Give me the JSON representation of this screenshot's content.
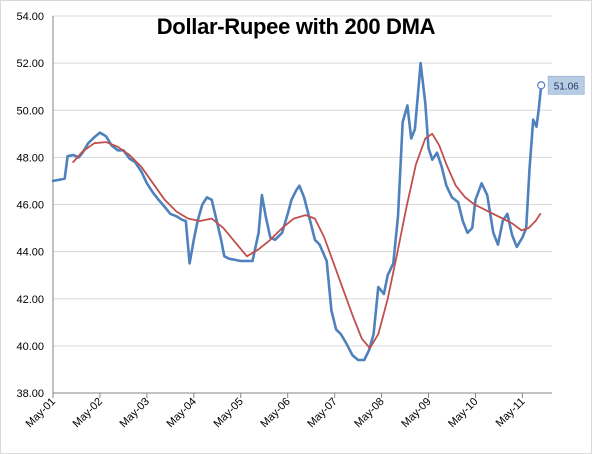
{
  "chart_data": {
    "type": "line",
    "title": "Dollar-Rupee with 200 DMA",
    "xlabel": "",
    "ylabel": "",
    "ylim": [
      38,
      54
    ],
    "y_ticks": [
      "38.00",
      "40.00",
      "42.00",
      "44.00",
      "46.00",
      "48.00",
      "50.00",
      "52.00",
      "54.00"
    ],
    "x_tick_labels": [
      "May-01",
      "May-02",
      "May-03",
      "May-04",
      "May-05",
      "May-06",
      "May-07",
      "May-08",
      "May-09",
      "May-10",
      "May-11"
    ],
    "grid": "horizontal",
    "legend": "none",
    "colors": {
      "price": "#4f81bd",
      "dma": "#c0504d",
      "grid": "#d9d9d9",
      "callout_bg": "#b8cce4"
    },
    "last_value_label": "51.06",
    "series": [
      {
        "color": "#4f81bd",
        "points": [
          [
            2001.37,
            47.0
          ],
          [
            2001.5,
            47.05
          ],
          [
            2001.62,
            47.1
          ],
          [
            2001.68,
            48.05
          ],
          [
            2001.8,
            48.1
          ],
          [
            2001.92,
            48.0
          ],
          [
            2002.0,
            48.2
          ],
          [
            2002.12,
            48.6
          ],
          [
            2002.25,
            48.85
          ],
          [
            2002.37,
            49.05
          ],
          [
            2002.5,
            48.9
          ],
          [
            2002.62,
            48.5
          ],
          [
            2002.75,
            48.3
          ],
          [
            2002.87,
            48.3
          ],
          [
            2003.0,
            47.95
          ],
          [
            2003.12,
            47.8
          ],
          [
            2003.25,
            47.4
          ],
          [
            2003.37,
            46.9
          ],
          [
            2003.5,
            46.5
          ],
          [
            2003.62,
            46.2
          ],
          [
            2003.75,
            45.9
          ],
          [
            2003.87,
            45.6
          ],
          [
            2004.0,
            45.5
          ],
          [
            2004.12,
            45.35
          ],
          [
            2004.2,
            45.3
          ],
          [
            2004.28,
            43.5
          ],
          [
            2004.37,
            44.5
          ],
          [
            2004.45,
            45.3
          ],
          [
            2004.55,
            46.0
          ],
          [
            2004.65,
            46.3
          ],
          [
            2004.75,
            46.2
          ],
          [
            2004.87,
            45.2
          ],
          [
            2004.95,
            44.5
          ],
          [
            2005.02,
            43.8
          ],
          [
            2005.12,
            43.7
          ],
          [
            2005.25,
            43.65
          ],
          [
            2005.37,
            43.6
          ],
          [
            2005.5,
            43.6
          ],
          [
            2005.62,
            43.6
          ],
          [
            2005.75,
            44.8
          ],
          [
            2005.82,
            46.4
          ],
          [
            2005.9,
            45.5
          ],
          [
            2006.0,
            44.6
          ],
          [
            2006.1,
            44.5
          ],
          [
            2006.25,
            44.8
          ],
          [
            2006.37,
            45.6
          ],
          [
            2006.45,
            46.2
          ],
          [
            2006.55,
            46.6
          ],
          [
            2006.62,
            46.8
          ],
          [
            2006.72,
            46.3
          ],
          [
            2006.85,
            45.3
          ],
          [
            2006.95,
            44.5
          ],
          [
            2007.05,
            44.3
          ],
          [
            2007.2,
            43.6
          ],
          [
            2007.3,
            41.5
          ],
          [
            2007.4,
            40.7
          ],
          [
            2007.5,
            40.5
          ],
          [
            2007.62,
            40.1
          ],
          [
            2007.75,
            39.6
          ],
          [
            2007.87,
            39.4
          ],
          [
            2008.0,
            39.4
          ],
          [
            2008.1,
            39.8
          ],
          [
            2008.2,
            40.5
          ],
          [
            2008.3,
            42.5
          ],
          [
            2008.42,
            42.2
          ],
          [
            2008.5,
            43.0
          ],
          [
            2008.62,
            43.5
          ],
          [
            2008.72,
            45.5
          ],
          [
            2008.82,
            49.5
          ],
          [
            2008.92,
            50.2
          ],
          [
            2009.0,
            48.8
          ],
          [
            2009.08,
            49.2
          ],
          [
            2009.15,
            50.8
          ],
          [
            2009.2,
            52.0
          ],
          [
            2009.3,
            50.3
          ],
          [
            2009.37,
            48.4
          ],
          [
            2009.45,
            47.9
          ],
          [
            2009.55,
            48.2
          ],
          [
            2009.65,
            47.6
          ],
          [
            2009.75,
            46.8
          ],
          [
            2009.87,
            46.3
          ],
          [
            2010.0,
            46.1
          ],
          [
            2010.1,
            45.3
          ],
          [
            2010.2,
            44.8
          ],
          [
            2010.3,
            45.0
          ],
          [
            2010.37,
            46.2
          ],
          [
            2010.5,
            46.9
          ],
          [
            2010.62,
            46.4
          ],
          [
            2010.75,
            44.8
          ],
          [
            2010.85,
            44.3
          ],
          [
            2010.95,
            45.3
          ],
          [
            2011.05,
            45.6
          ],
          [
            2011.15,
            44.7
          ],
          [
            2011.25,
            44.2
          ],
          [
            2011.37,
            44.6
          ],
          [
            2011.45,
            45.0
          ],
          [
            2011.52,
            47.5
          ],
          [
            2011.6,
            49.6
          ],
          [
            2011.67,
            49.3
          ],
          [
            2011.72,
            50.1
          ],
          [
            2011.77,
            51.06
          ]
        ]
      },
      {
        "color": "#c0504d",
        "points": [
          [
            2001.8,
            47.8
          ],
          [
            2002.0,
            48.25
          ],
          [
            2002.25,
            48.6
          ],
          [
            2002.5,
            48.65
          ],
          [
            2002.75,
            48.45
          ],
          [
            2003.0,
            48.1
          ],
          [
            2003.25,
            47.6
          ],
          [
            2003.5,
            46.9
          ],
          [
            2003.75,
            46.2
          ],
          [
            2004.0,
            45.7
          ],
          [
            2004.25,
            45.4
          ],
          [
            2004.5,
            45.3
          ],
          [
            2004.75,
            45.4
          ],
          [
            2005.0,
            45.0
          ],
          [
            2005.25,
            44.4
          ],
          [
            2005.5,
            43.8
          ],
          [
            2005.75,
            44.1
          ],
          [
            2006.0,
            44.5
          ],
          [
            2006.25,
            45.0
          ],
          [
            2006.5,
            45.4
          ],
          [
            2006.75,
            45.55
          ],
          [
            2006.95,
            45.4
          ],
          [
            2007.15,
            44.6
          ],
          [
            2007.35,
            43.5
          ],
          [
            2007.55,
            42.4
          ],
          [
            2007.75,
            41.3
          ],
          [
            2007.95,
            40.3
          ],
          [
            2008.12,
            39.9
          ],
          [
            2008.3,
            40.5
          ],
          [
            2008.5,
            42.0
          ],
          [
            2008.7,
            43.9
          ],
          [
            2008.9,
            45.9
          ],
          [
            2009.1,
            47.7
          ],
          [
            2009.3,
            48.8
          ],
          [
            2009.45,
            49.0
          ],
          [
            2009.6,
            48.5
          ],
          [
            2009.75,
            47.7
          ],
          [
            2009.95,
            46.8
          ],
          [
            2010.15,
            46.3
          ],
          [
            2010.35,
            46.0
          ],
          [
            2010.55,
            45.8
          ],
          [
            2010.75,
            45.6
          ],
          [
            2010.95,
            45.4
          ],
          [
            2011.15,
            45.2
          ],
          [
            2011.35,
            44.9
          ],
          [
            2011.5,
            45.0
          ],
          [
            2011.65,
            45.3
          ],
          [
            2011.75,
            45.6
          ]
        ]
      }
    ]
  }
}
